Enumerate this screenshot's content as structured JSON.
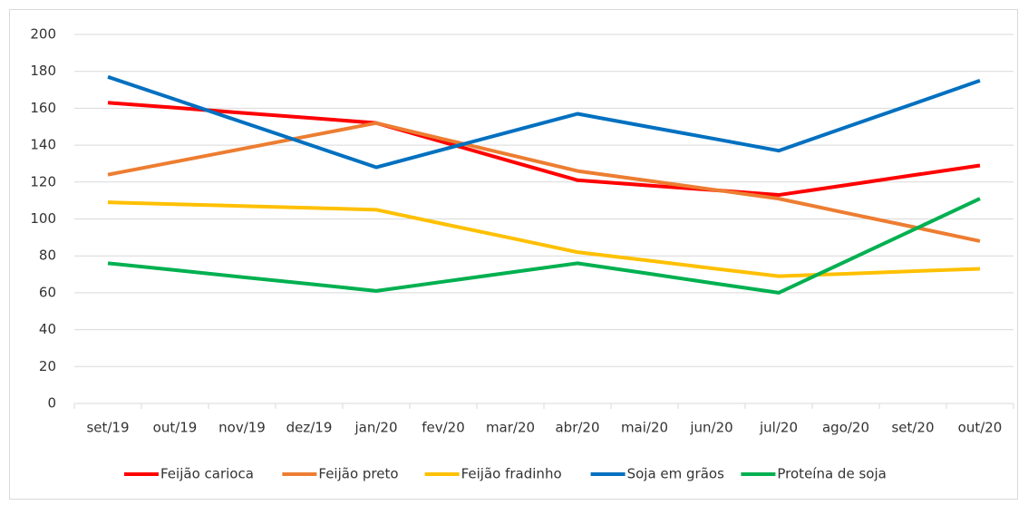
{
  "chart_data": {
    "type": "line",
    "categories": [
      "set/19",
      "out/19",
      "nov/19",
      "dez/19",
      "jan/20",
      "fev/20",
      "mar/20",
      "abr/20",
      "mai/20",
      "jun/20",
      "jul/20",
      "ago/20",
      "set/20",
      "out/20"
    ],
    "series": [
      {
        "name": "Feijão carioca",
        "color": "#ff0000",
        "values": [
          163,
          160.3,
          157.5,
          154.8,
          152,
          141.7,
          131.3,
          121,
          118.3,
          115.7,
          113,
          118.3,
          123.7,
          129
        ]
      },
      {
        "name": "Feijão preto",
        "color": "#ed7d31",
        "values": [
          124,
          131,
          138,
          145,
          152,
          143.3,
          134.7,
          126,
          121,
          116,
          111,
          103.3,
          95.7,
          88
        ]
      },
      {
        "name": "Feijão fradinho",
        "color": "#ffc000",
        "values": [
          109,
          108,
          107,
          106,
          105,
          97.3,
          89.7,
          82,
          77.7,
          73.3,
          69,
          70.3,
          71.7,
          73
        ]
      },
      {
        "name": "Soja em grãos",
        "color": "#0070c0",
        "values": [
          177,
          164.8,
          152.5,
          140.3,
          128,
          137.7,
          147.3,
          157,
          150.3,
          143.7,
          137,
          149.7,
          162.3,
          175
        ]
      },
      {
        "name": "Proteína de soja",
        "color": "#00b050",
        "values": [
          76,
          72.3,
          68.5,
          64.8,
          61,
          66,
          71,
          76,
          70.7,
          65.3,
          60,
          77,
          94,
          111
        ]
      }
    ],
    "ylim": [
      0,
      200
    ],
    "yticks": [
      0,
      20,
      40,
      60,
      80,
      100,
      120,
      140,
      160,
      180,
      200
    ],
    "grid": true,
    "legend": "bottom"
  }
}
